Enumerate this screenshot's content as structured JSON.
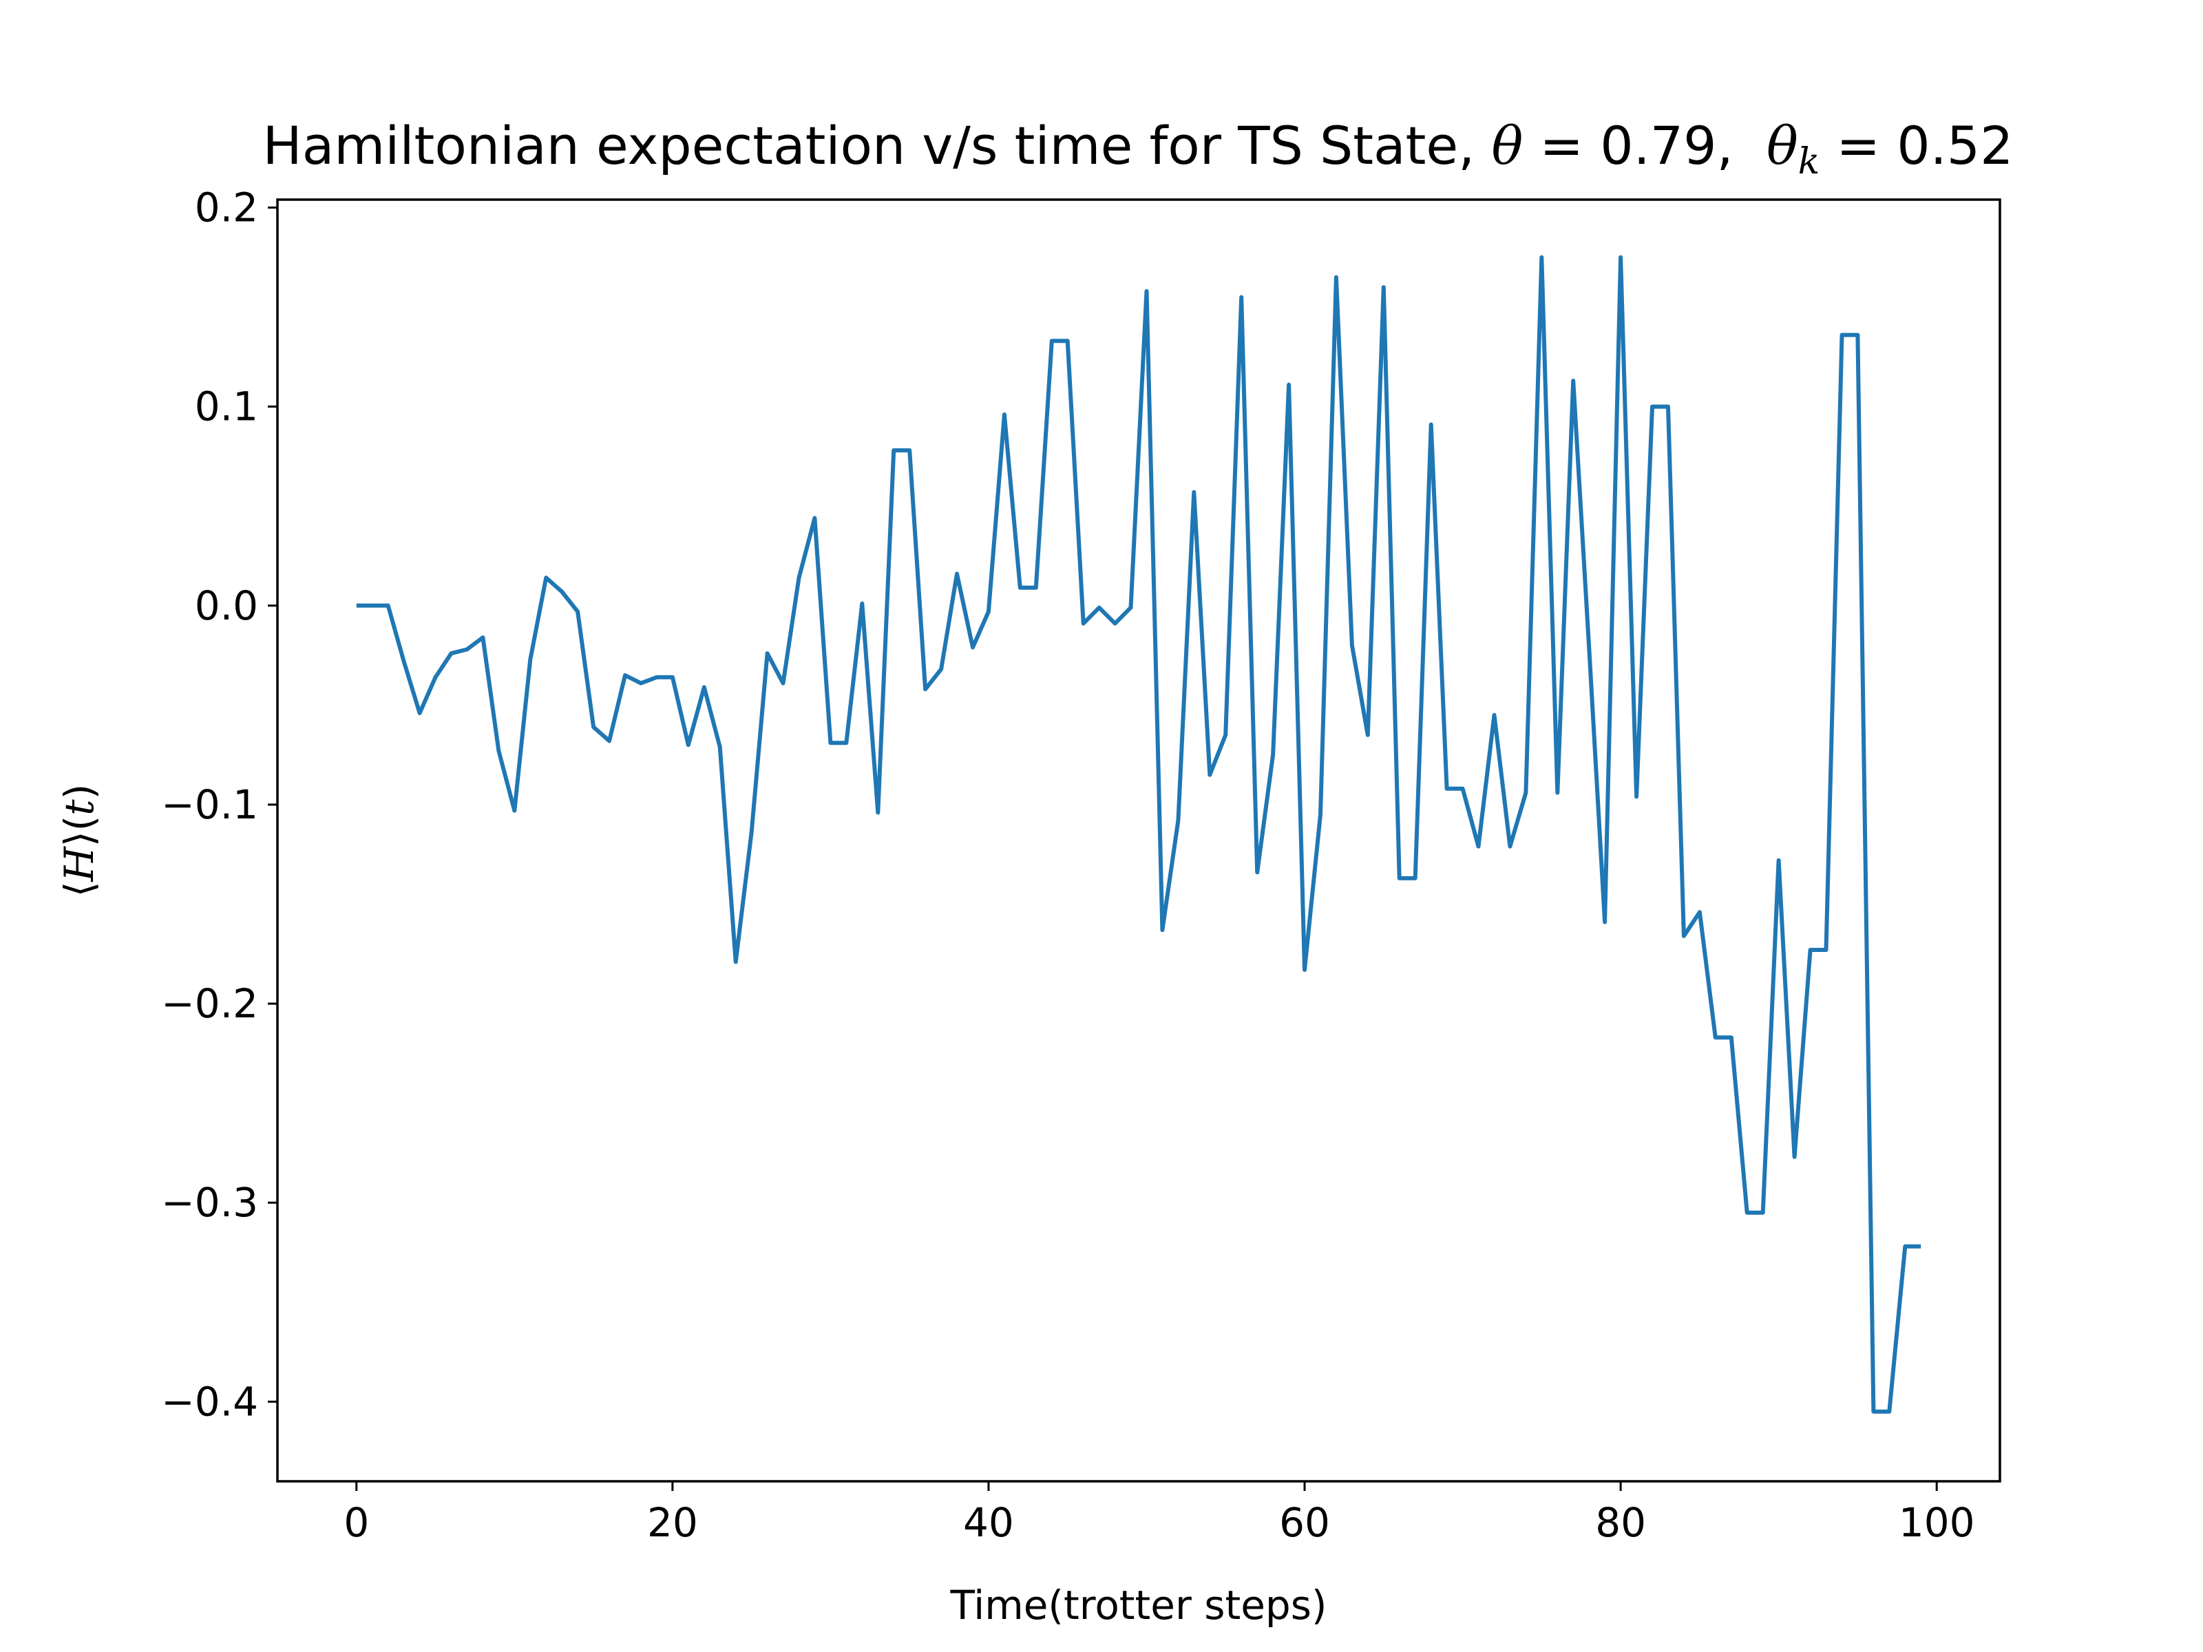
{
  "chart_data": {
    "type": "line",
    "title": {
      "prefix": "Hamiltonian expectation v/s time for TS State, ",
      "theta_symbol": "θ",
      "theta_value": " = 0.79,  ",
      "theta_k_symbol": "θ",
      "theta_k_subscript": "k",
      "theta_k_value": " = 0.52"
    },
    "xlabel": "Time(trotter steps)",
    "ylabel": {
      "open": "⟨",
      "H": "H",
      "close": "⟩",
      "paren_open": "(",
      "t": "t",
      "paren_close": ")"
    },
    "xlim": [
      -5,
      104
    ],
    "ylim": [
      -0.44,
      0.204
    ],
    "xticks": [
      0,
      20,
      40,
      60,
      80,
      100
    ],
    "xtick_labels": [
      "0",
      "20",
      "40",
      "60",
      "80",
      "100"
    ],
    "yticks": [
      0.2,
      0.1,
      0.0,
      -0.1,
      -0.2,
      -0.3,
      -0.4
    ],
    "ytick_labels": [
      "0.2",
      "0.1",
      "0.0",
      "−0.1",
      "−0.2",
      "−0.3",
      "−0.4"
    ],
    "grid": false,
    "series": [
      {
        "color": "#1f77b4",
        "x": [
          0,
          1,
          2,
          3,
          4,
          5,
          6,
          7,
          8,
          9,
          10,
          11,
          12,
          13,
          14,
          15,
          16,
          17,
          18,
          19,
          20,
          21,
          22,
          23,
          24,
          25,
          26,
          27,
          28,
          29,
          30,
          31,
          32,
          33,
          34,
          35,
          36,
          37,
          38,
          39,
          40,
          41,
          42,
          43,
          44,
          45,
          46,
          47,
          48,
          49,
          50,
          51,
          52,
          53,
          54,
          55,
          56,
          57,
          58,
          59,
          60,
          61,
          62,
          63,
          64,
          65,
          66,
          67,
          68,
          69,
          70,
          71,
          72,
          73,
          74,
          75,
          76,
          77,
          78,
          79,
          80,
          81,
          82,
          83,
          84,
          85,
          86,
          87,
          88,
          89,
          90,
          91,
          92,
          93,
          94,
          95,
          96,
          97,
          98,
          99
        ],
        "values": [
          0.0,
          0.0,
          0.0,
          -0.028,
          -0.054,
          -0.036,
          -0.024,
          -0.022,
          -0.016,
          -0.073,
          -0.103,
          -0.027,
          0.014,
          0.007,
          -0.003,
          -0.061,
          -0.068,
          -0.035,
          -0.039,
          -0.036,
          -0.036,
          -0.07,
          -0.041,
          -0.071,
          -0.179,
          -0.114,
          -0.024,
          -0.039,
          0.014,
          0.044,
          -0.069,
          -0.069,
          0.001,
          -0.104,
          0.078,
          0.078,
          -0.042,
          -0.032,
          0.016,
          -0.021,
          -0.003,
          0.096,
          0.009,
          0.009,
          0.133,
          0.133,
          -0.009,
          -0.001,
          -0.009,
          -0.001,
          0.158,
          -0.163,
          -0.108,
          0.057,
          -0.085,
          -0.065,
          0.155,
          -0.134,
          -0.075,
          0.111,
          -0.183,
          -0.105,
          0.165,
          -0.02,
          -0.065,
          0.16,
          -0.137,
          -0.137,
          0.091,
          -0.092,
          -0.092,
          -0.121,
          -0.055,
          -0.121,
          -0.094,
          0.175,
          -0.094,
          0.113,
          -0.021,
          -0.159,
          0.175,
          -0.096,
          0.1,
          0.1,
          -0.166,
          -0.154,
          -0.217,
          -0.217,
          -0.305,
          -0.305,
          -0.128,
          -0.277,
          -0.173,
          -0.173,
          0.136,
          0.136,
          -0.405,
          -0.405,
          -0.322,
          -0.322
        ]
      }
    ]
  }
}
